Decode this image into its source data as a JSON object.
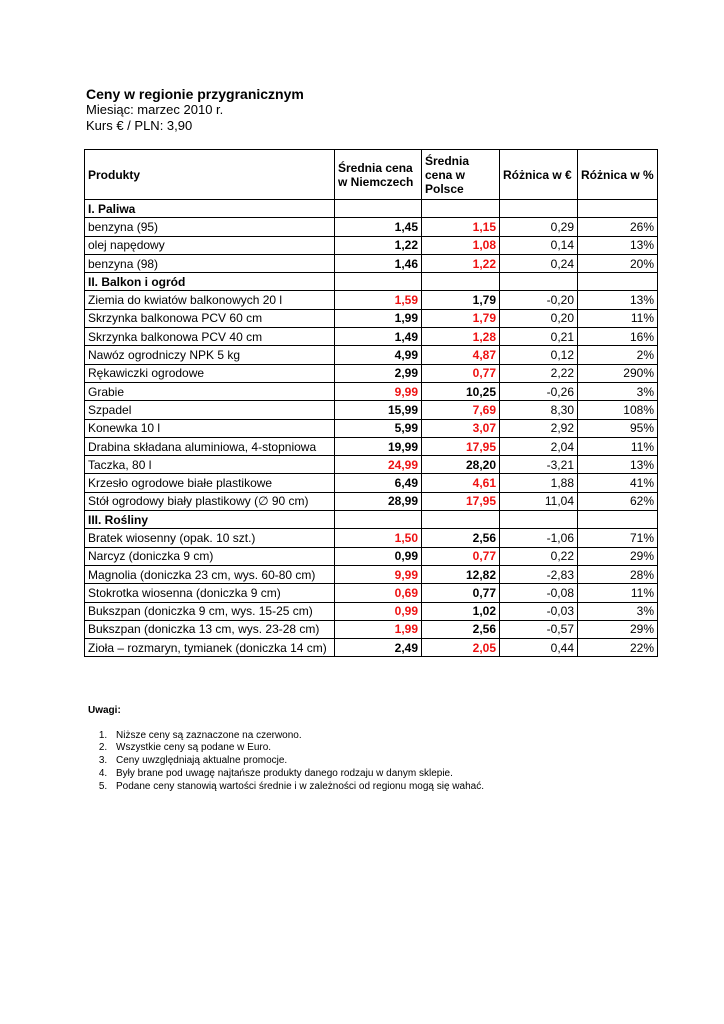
{
  "header": {
    "title": "Ceny w regionie przygranicznym",
    "month": "Miesiąc: marzec 2010 r.",
    "rate": "Kurs € / PLN: 3,90"
  },
  "table": {
    "columns": [
      "Produkty",
      "Średnia cena w Niemczech",
      "Średnia cena w Polsce",
      "Różnica w €",
      "Różnica w %"
    ],
    "sections": [
      {
        "name": "I. Paliwa",
        "rows": [
          [
            "benzyna (95)",
            "1,45",
            "1,15",
            "0,29",
            "26%"
          ],
          [
            "olej napędowy",
            "1,22",
            "1,08",
            "0,14",
            "13%"
          ],
          [
            "benzyna (98)",
            "1,46",
            "1,22",
            "0,24",
            "20%"
          ]
        ]
      },
      {
        "name": "II. Balkon i ogród",
        "rows": [
          [
            "Ziemia do kwiatów balkonowych 20 l",
            "1,59",
            "1,79",
            "-0,20",
            "13%"
          ],
          [
            "Skrzynka balkonowa PCV 60 cm",
            "1,99",
            "1,79",
            "0,20",
            "11%"
          ],
          [
            "Skrzynka balkonowa PCV 40 cm",
            "1,49",
            "1,28",
            "0,21",
            "16%"
          ],
          [
            "Nawóz ogrodniczy NPK 5 kg",
            "4,99",
            "4,87",
            "0,12",
            "2%"
          ],
          [
            "Rękawiczki ogrodowe",
            "2,99",
            "0,77",
            "2,22",
            "290%"
          ],
          [
            "Grabie",
            "9,99",
            "10,25",
            "-0,26",
            "3%"
          ],
          [
            "Szpadel",
            "15,99",
            "7,69",
            "8,30",
            "108%"
          ],
          [
            "Konewka 10 l",
            "5,99",
            "3,07",
            "2,92",
            "95%"
          ],
          [
            "Drabina składana aluminiowa, 4-stopniowa",
            "19,99",
            "17,95",
            "2,04",
            "11%"
          ],
          [
            "Taczka, 80 l",
            "24,99",
            "28,20",
            "-3,21",
            "13%"
          ],
          [
            "Krzesło ogrodowe białe plastikowe",
            "6,49",
            "4,61",
            "1,88",
            "41%"
          ],
          [
            "Stół ogrodowy biały plastikowy (∅ 90 cm)",
            "28,99",
            "17,95",
            "11,04",
            "62%"
          ]
        ]
      },
      {
        "name": "III. Rośliny",
        "rows": [
          [
            "Bratek wiosenny (opak. 10 szt.)",
            "1,50",
            "2,56",
            "-1,06",
            "71%"
          ],
          [
            "Narcyz (doniczka 9 cm)",
            "0,99",
            "0,77",
            "0,22",
            "29%"
          ],
          [
            "Magnolia (doniczka 23 cm, wys. 60-80 cm)",
            "9,99",
            "12,82",
            "-2,83",
            "28%"
          ],
          [
            "Stokrotka wiosenna (doniczka 9 cm)",
            "0,69",
            "0,77",
            "-0,08",
            "11%"
          ],
          [
            "Bukszpan (doniczka 9 cm, wys. 15-25 cm)",
            "0,99",
            "1,02",
            "-0,03",
            "3%"
          ],
          [
            "Bukszpan (doniczka 13 cm, wys. 23-28 cm)",
            "1,99",
            "2,56",
            "-0,57",
            "29%"
          ],
          [
            "Zioła – rozmaryn, tymianek (doniczka 14 cm)",
            "2,49",
            "2,05",
            "0,44",
            "22%"
          ]
        ]
      }
    ],
    "lower_color": "#ee1111"
  },
  "notes": {
    "title": "Uwagi:",
    "items": [
      "Niższe ceny są zaznaczone na czerwono.",
      "Wszystkie ceny są podane w Euro.",
      "Ceny uwzględniają aktualne promocje.",
      "Były brane pod uwagę najtańsze produkty danego rodzaju w danym sklepie.",
      "Podane ceny stanowią wartości średnie i w zależności od regionu mogą się wahać."
    ]
  }
}
